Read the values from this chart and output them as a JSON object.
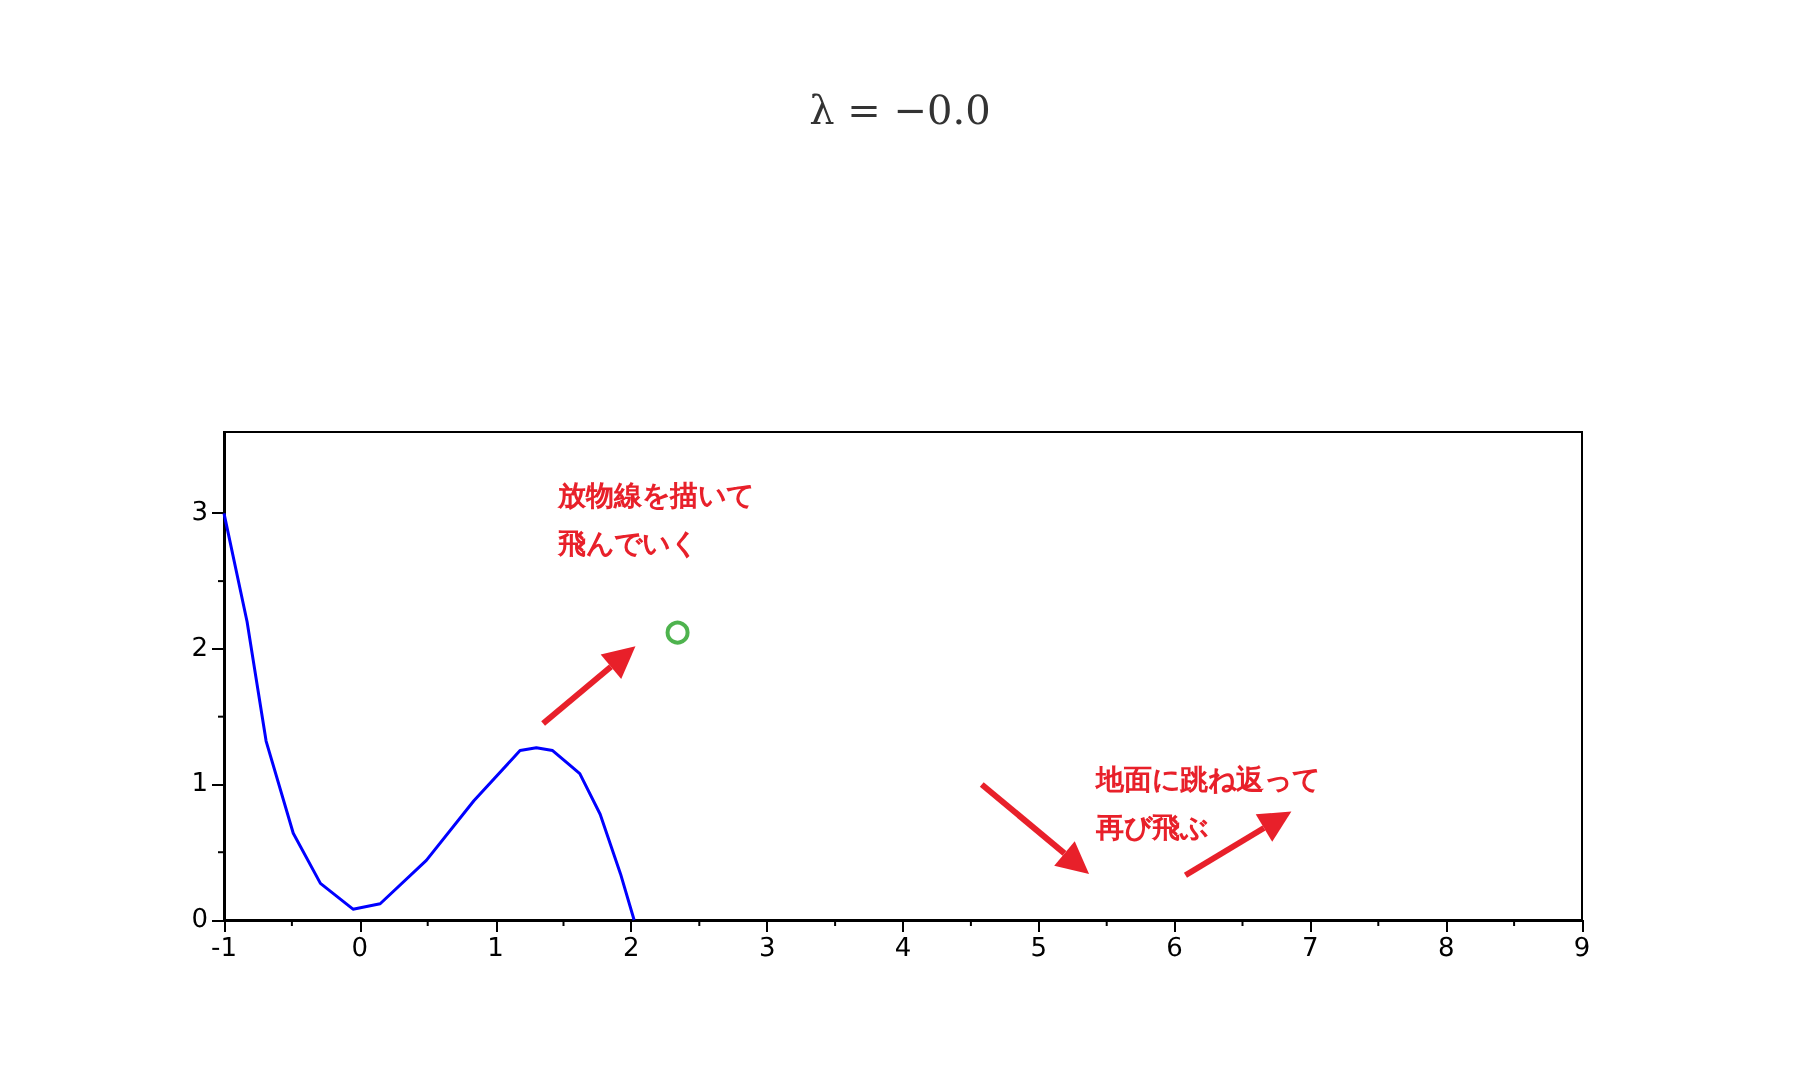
{
  "chart_data": {
    "type": "line",
    "title": "λ = −0.0",
    "xlim": [
      -1,
      9
    ],
    "xticks": [
      -1,
      0,
      1,
      2,
      3,
      4,
      5,
      6,
      7,
      8,
      9
    ],
    "ylim": [
      0,
      3.6
    ],
    "yticks": [
      0,
      1,
      2,
      3
    ],
    "grid": false,
    "annotations": [
      "放物線を描いて飛んでいく",
      "地面に跳ね返って再び飛ぶ"
    ],
    "series": [
      {
        "marker": "none",
        "color": "#0000ff",
        "x": [
          -1,
          -0.83,
          -0.69,
          -0.49,
          -0.29,
          -0.05,
          0.15,
          0.49,
          0.84,
          1.18,
          1.3,
          1.42,
          1.62,
          1.77,
          1.92,
          2.02
        ],
        "values": [
          3.0,
          2.2,
          1.32,
          0.64,
          0.27,
          0.08,
          0.12,
          0.44,
          0.88,
          1.25,
          1.27,
          1.25,
          1.08,
          0.78,
          0.34,
          0
        ]
      },
      {
        "type": "scatter",
        "marker": "circle",
        "color": "#22a022",
        "x": [
          2.34
        ],
        "values": [
          2.12
        ]
      }
    ]
  }
}
